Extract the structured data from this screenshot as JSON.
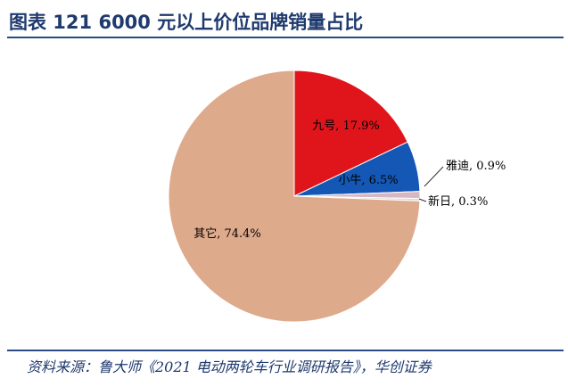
{
  "figure": {
    "title": "图表 121  6000 元以上价位品牌销量占比",
    "source": "资料来源：鲁大师《2021 电动两轮车行业调研报告》，华创证券"
  },
  "chart_data": {
    "type": "pie",
    "start_angle_deg": 0,
    "direction": "clockwise",
    "slices": [
      {
        "label": "九号",
        "value": 17.9,
        "text": "九号, 17.9%",
        "color": "#e0151c"
      },
      {
        "label": "小牛",
        "value": 6.5,
        "text": "小牛, 6.5%",
        "color": "#1457b5"
      },
      {
        "label": "雅迪",
        "value": 0.9,
        "text": "雅迪, 0.9%",
        "color": "#d7b7c3"
      },
      {
        "label": "新日",
        "value": 0.3,
        "text": "新日, 0.3%",
        "color": "#d9d9d9"
      },
      {
        "label": "其它",
        "value": 74.4,
        "text": "其它, 74.4%",
        "color": "#deaa8c"
      }
    ]
  }
}
